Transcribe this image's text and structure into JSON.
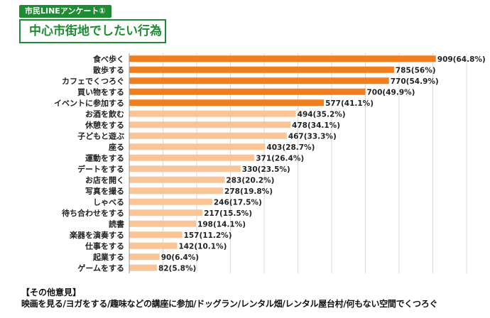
{
  "header": {
    "tag": "市民LINEアンケート①",
    "title": "中心市街地でしたい行為"
  },
  "colors": {
    "accent": "#1e8c32",
    "bar_top": "#f07d1e",
    "bar_rest": "#f9c597",
    "grid": "#d9d9d9"
  },
  "chart_data": {
    "type": "bar",
    "orientation": "horizontal",
    "title": "中心市街地でしたい行為",
    "categories": [
      "食べ歩く",
      "散歩する",
      "カフェでくつろぐ",
      "買い物をする",
      "イベントに参加する",
      "お酒を飲む",
      "休憩をする",
      "子どもと遊ぶ",
      "座る",
      "運動をする",
      "デートをする",
      "お店を開く",
      "写真を撮る",
      "しゃべる",
      "待ち合わせをする",
      "読書",
      "楽器を演奏する",
      "仕事をする",
      "起業する",
      "ゲームをする"
    ],
    "values": [
      909,
      785,
      770,
      700,
      577,
      494,
      478,
      467,
      403,
      371,
      330,
      283,
      278,
      246,
      217,
      198,
      157,
      142,
      90,
      82
    ],
    "value_labels": [
      "909(64.8%)",
      "785(56%)",
      "770(54.9%)",
      "700(49.9%)",
      "577(41.1%)",
      "494(35.2%)",
      "478(34.1%)",
      "467(33.3%)",
      "403(28.7%)",
      "371(26.4%)",
      "330(23.5%)",
      "283(20.2%)",
      "278(19.8%)",
      "246(17.5%)",
      "217(15.5%)",
      "198(14.1%)",
      "157(11.2%)",
      "142(10.1%)",
      "90(6.4%)",
      "82(5.8%)"
    ],
    "highlight_top_n": 5,
    "xlim": [
      0,
      1000
    ],
    "grid": true
  },
  "other": {
    "heading": "【その他意見】",
    "text": "映画を見る/ヨガをする/趣味などの講座に参加/ドッグラン/レンタル畑/レンタル屋台村/何もない空間でくつろぐ"
  }
}
